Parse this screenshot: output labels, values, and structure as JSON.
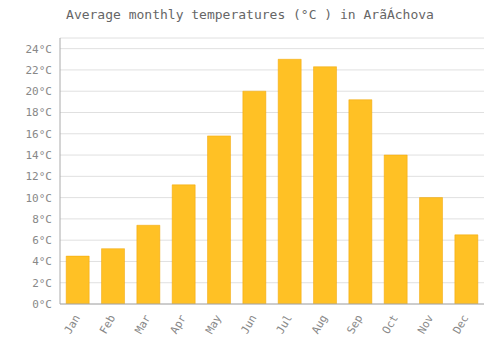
{
  "chart_data": {
    "type": "bar",
    "title": "Average monthly temperatures (°C ) in ArãÁchova",
    "categories": [
      "Jan",
      "Feb",
      "Mar",
      "Apr",
      "May",
      "Jun",
      "Jul",
      "Aug",
      "Sep",
      "Oct",
      "Nov",
      "Dec"
    ],
    "values": [
      4.5,
      5.2,
      7.4,
      11.2,
      15.8,
      20.0,
      23.0,
      22.3,
      19.2,
      14.0,
      10.0,
      6.5
    ],
    "color": "#FFC125",
    "ylim": [
      0,
      25
    ],
    "yticks": [
      {
        "value": 0,
        "label": "0°C"
      },
      {
        "value": 2,
        "label": "2°C"
      },
      {
        "value": 4,
        "label": "4°C"
      },
      {
        "value": 6,
        "label": "6°C"
      },
      {
        "value": 8,
        "label": "8°C"
      },
      {
        "value": 10,
        "label": "10°C"
      },
      {
        "value": 12,
        "label": "12°C"
      },
      {
        "value": 14,
        "label": "14°C"
      },
      {
        "value": 16,
        "label": "16°C"
      },
      {
        "value": 18,
        "label": "18°C"
      },
      {
        "value": 20,
        "label": "20°C"
      },
      {
        "value": 22,
        "label": "22°C"
      },
      {
        "value": 24,
        "label": "24°C"
      }
    ],
    "grid": true
  }
}
